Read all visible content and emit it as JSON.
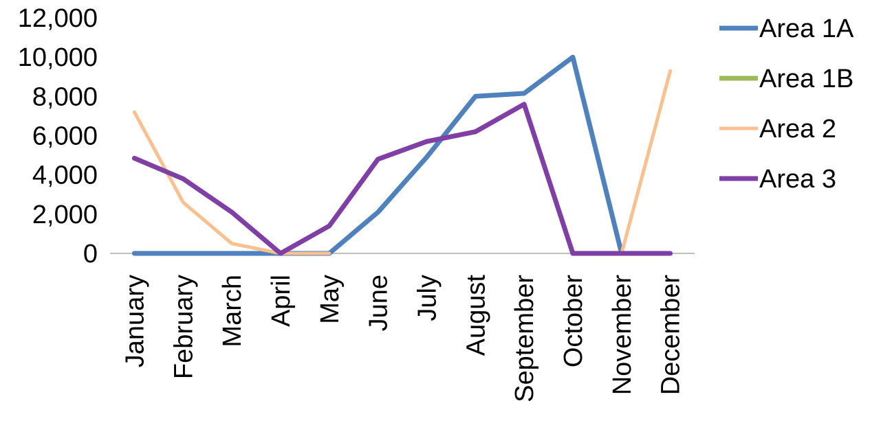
{
  "chart_data": {
    "type": "line",
    "title": "",
    "xlabel": "",
    "ylabel": "",
    "categories": [
      "January",
      "February",
      "March",
      "April",
      "May",
      "June",
      "July",
      "August",
      "September",
      "October",
      "November",
      "December"
    ],
    "ylim": [
      0,
      12000
    ],
    "yticks": [
      0,
      2000,
      4000,
      6000,
      8000,
      10000,
      12000
    ],
    "ytick_labels": [
      "0",
      "2,000",
      "4,000",
      "6,000",
      "8,000",
      "10,000",
      "12,000"
    ],
    "grid": false,
    "legend_position": "right",
    "series": [
      {
        "name": "Area 1A",
        "color": "#4F81BD",
        "values": [
          0,
          0,
          0,
          0,
          0,
          2100,
          4900,
          8000,
          8150,
          10000,
          0,
          null
        ]
      },
      {
        "name": "Area 1B",
        "color": "#9BBB59",
        "values": [
          null,
          null,
          null,
          null,
          null,
          null,
          null,
          null,
          null,
          null,
          null,
          null
        ]
      },
      {
        "name": "Area 2",
        "color": "#FAC090",
        "values": [
          7200,
          2600,
          500,
          0,
          0,
          null,
          null,
          null,
          null,
          null,
          0,
          9300
        ]
      },
      {
        "name": "Area 3",
        "color": "#7F3FA5",
        "values": [
          4850,
          3800,
          2100,
          0,
          1400,
          4800,
          5700,
          6200,
          7600,
          0,
          0,
          0
        ]
      }
    ]
  }
}
